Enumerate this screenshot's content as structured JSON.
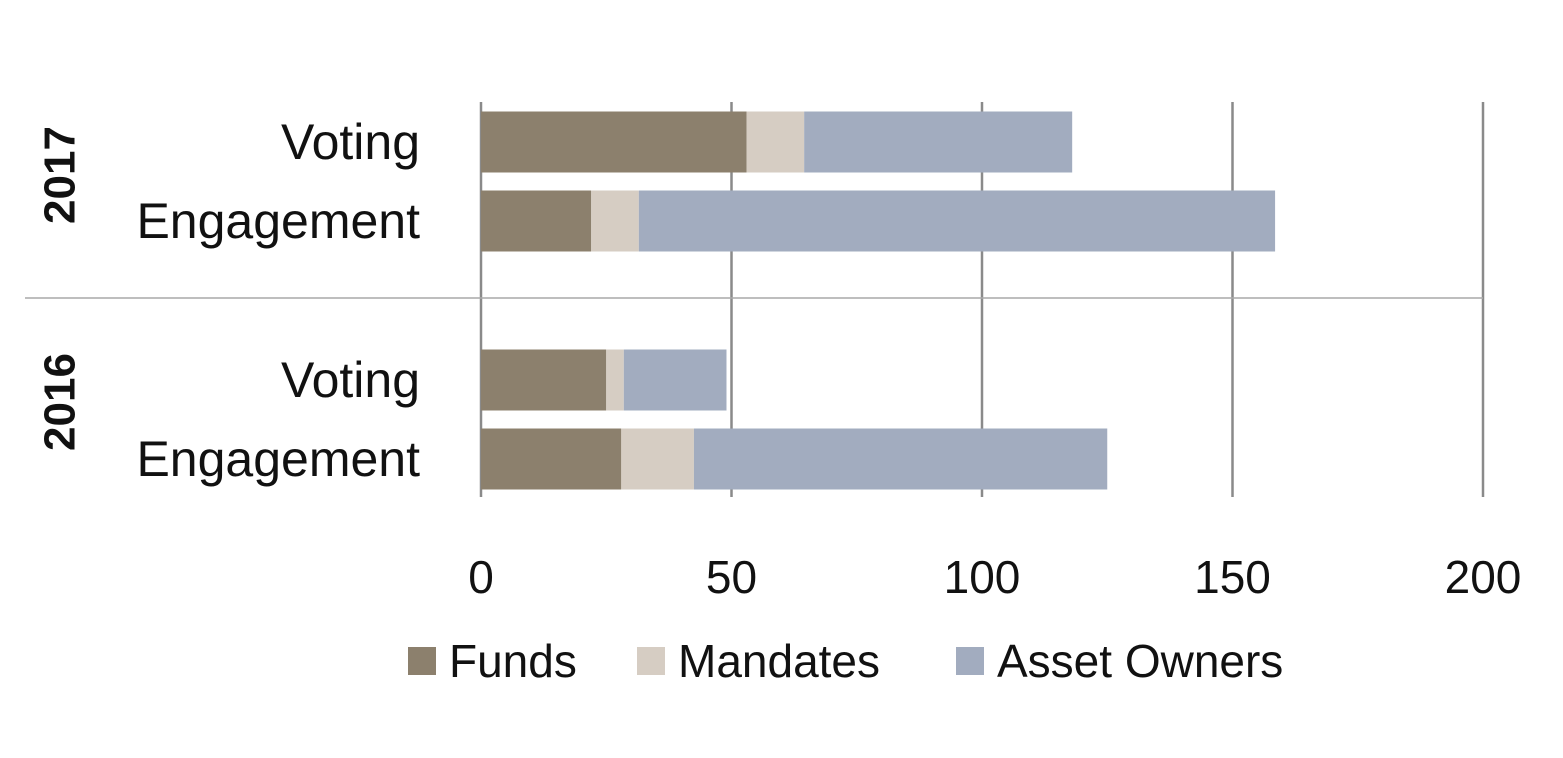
{
  "chart_data": {
    "type": "bar",
    "orientation": "horizontal",
    "stacked": true,
    "title": "",
    "xlabel": "",
    "ylabel": "",
    "xlim": [
      0,
      200
    ],
    "x_ticks": [
      0,
      50,
      100,
      150,
      200
    ],
    "x_tick_labels": [
      "0",
      "50",
      "100",
      "150",
      "200"
    ],
    "grid": true,
    "legend_position": "bottom",
    "groups": [
      {
        "label": "2017",
        "categories": [
          "Voting",
          "Engagement"
        ]
      },
      {
        "label": "2016",
        "categories": [
          "Voting",
          "Engagement"
        ]
      }
    ],
    "series": [
      {
        "name": "Funds",
        "color": "#8c806d",
        "values": [
          53,
          22,
          25,
          28
        ]
      },
      {
        "name": "Mandates",
        "color": "#d6cdc3",
        "values": [
          11.5,
          9.5,
          3.5,
          14.5
        ]
      },
      {
        "name": "Asset Owners",
        "color": "#a2acbf",
        "values": [
          53.5,
          127,
          20.5,
          82.5
        ]
      }
    ]
  }
}
